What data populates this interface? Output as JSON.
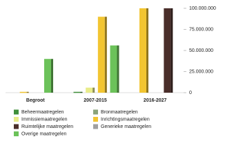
{
  "chart_data": {
    "type": "bar",
    "categories": [
      "Begroot",
      "2007-2015",
      "2016-2027"
    ],
    "series": [
      {
        "name": "Beheermaatregelen",
        "color": "#3f8f3a",
        "values": [
          null,
          1000000,
          null
        ]
      },
      {
        "name": "Bronmaatregelen",
        "color": "#8aa37a",
        "values": [
          null,
          null,
          null
        ]
      },
      {
        "name": "Immissiemaatregelen",
        "color": "#e9ec8a",
        "values": [
          null,
          6000000,
          null
        ]
      },
      {
        "name": "Inrichtingsmaatregelen",
        "color": "#f2c531",
        "values": [
          1000000,
          90000000,
          100000000
        ]
      },
      {
        "name": "Ruimtelijke maatregelen",
        "color": "#4a2e2a",
        "values": [
          null,
          null,
          100000000
        ]
      },
      {
        "name": "Generieke maatregelen",
        "color": "#a0a0a0",
        "values": [
          null,
          null,
          null
        ]
      },
      {
        "name": "Overige maatregelen",
        "color": "#6cc25a",
        "values": [
          40000000,
          56000000,
          null
        ]
      }
    ],
    "ylim": [
      0,
      100000000
    ],
    "yticks": [
      0,
      {
        "value": 25000000,
        "label": "25.000.000"
      },
      {
        "value": 50000000,
        "label": "50.000.000"
      },
      {
        "value": 75000000,
        "label": "75.000.000"
      },
      {
        "value": 100000000,
        "label": "100.000.000"
      }
    ],
    "legend": "bottom"
  }
}
